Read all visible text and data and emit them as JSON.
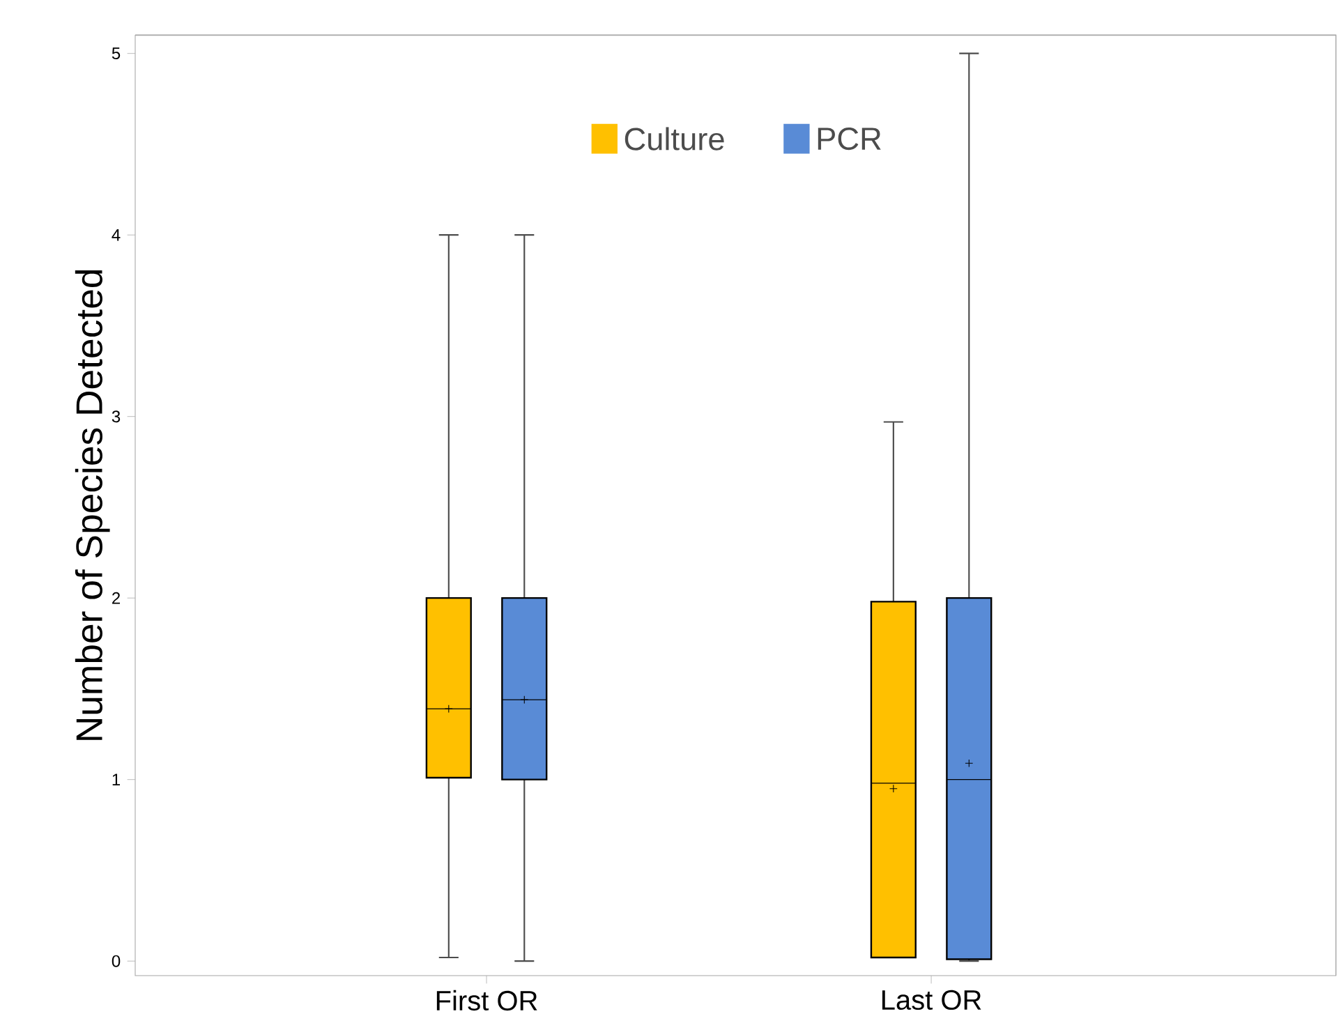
{
  "chart_data": {
    "type": "box",
    "ylabel": "Number of Species Detected",
    "categories": [
      "First OR",
      "Last OR"
    ],
    "ylim": [
      -0.08,
      5.1
    ],
    "yticks": [
      0,
      1,
      2,
      3,
      4,
      5
    ],
    "legend": "top",
    "series": [
      {
        "name": "Culture",
        "color": "#ffc000",
        "boxes": [
          {
            "low": 0.02,
            "q1": 1.01,
            "median": 1.39,
            "q3": 2.0,
            "high": 4.0,
            "mean": 1.39
          },
          {
            "low": 0.02,
            "q1": 0.02,
            "median": 0.98,
            "q3": 1.98,
            "high": 2.97,
            "mean": 0.95
          }
        ]
      },
      {
        "name": "PCR",
        "color": "#598bd6",
        "boxes": [
          {
            "low": 0.0,
            "q1": 1.0,
            "median": 1.44,
            "q3": 2.0,
            "high": 4.0,
            "mean": 1.44
          },
          {
            "low": 0.0,
            "q1": 0.01,
            "median": 1.0,
            "q3": 2.0,
            "high": 5.0,
            "mean": 1.09
          }
        ]
      }
    ]
  }
}
